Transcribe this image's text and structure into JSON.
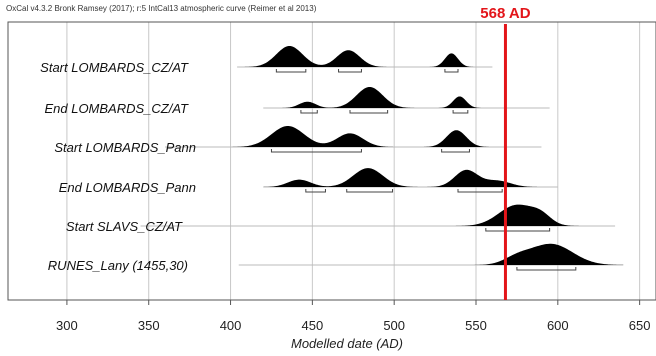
{
  "header_text": "OxCal v4.3.2 Bronk Ramsey (2017); r:5 IntCal13 atmospheric curve (Reimer et al 2013)",
  "colors": {
    "marker": "#e3151a",
    "distribution": "#000000",
    "grid": "#c8c8c8"
  },
  "chart_data": {
    "type": "area",
    "xlabel": "Modelled date (AD)",
    "xlim": [
      264,
      660
    ],
    "xticks": [
      300,
      350,
      400,
      450,
      500,
      550,
      600,
      650
    ],
    "grid": true,
    "marker": {
      "x": 568,
      "label": "568 AD"
    },
    "series": [
      {
        "name": "Start LOMBARDS_CZ/AT",
        "tail": [
          404,
          560
        ],
        "peaks": [
          {
            "x": 436,
            "h": 1.0,
            "w": 8
          },
          {
            "x": 472,
            "h": 0.8,
            "w": 7
          },
          {
            "x": 535,
            "h": 0.65,
            "w": 4
          }
        ],
        "range_95": [
          [
            428,
            446
          ],
          [
            466,
            480
          ],
          [
            531,
            539
          ]
        ]
      },
      {
        "name": "End LOMBARDS_CZ/AT",
        "tail": [
          420,
          595
        ],
        "peaks": [
          {
            "x": 447,
            "h": 0.3,
            "w": 5
          },
          {
            "x": 485,
            "h": 1.0,
            "w": 8
          },
          {
            "x": 540,
            "h": 0.55,
            "w": 4
          }
        ],
        "range_95": [
          [
            443,
            453
          ],
          [
            473,
            496
          ],
          [
            536,
            545
          ]
        ]
      },
      {
        "name": "Start LOMBARDS_Pann",
        "tail": [
          360,
          590
        ],
        "peaks": [
          {
            "x": 435,
            "h": 1.0,
            "w": 10
          },
          {
            "x": 473,
            "h": 0.65,
            "w": 8
          },
          {
            "x": 538,
            "h": 0.8,
            "w": 6
          }
        ],
        "range_95": [
          [
            425,
            480
          ],
          [
            529,
            546
          ]
        ]
      },
      {
        "name": "End LOMBARDS_Pann",
        "tail": [
          420,
          600
        ],
        "peaks": [
          {
            "x": 442,
            "h": 0.35,
            "w": 7
          },
          {
            "x": 484,
            "h": 0.9,
            "w": 9
          },
          {
            "x": 544,
            "h": 0.8,
            "w": 7
          },
          {
            "x": 563,
            "h": 0.3,
            "w": 8
          }
        ],
        "range_95": [
          [
            446,
            458
          ],
          [
            471,
            499
          ],
          [
            539,
            566
          ]
        ]
      },
      {
        "name": "Start SLAVS_CZ/AT",
        "tail": [
          345,
          635
        ],
        "peaks": [
          {
            "x": 575,
            "h": 1.0,
            "w": 11
          },
          {
            "x": 590,
            "h": 0.35,
            "w": 6
          }
        ],
        "range_95": [
          [
            556,
            595
          ]
        ]
      },
      {
        "name": "RUNES_Lany (1455,30)",
        "tail": [
          405,
          640
        ],
        "peaks": [
          {
            "x": 596,
            "h": 1.0,
            "w": 13
          },
          {
            "x": 575,
            "h": 0.3,
            "w": 8
          }
        ],
        "range_95": [
          [
            575,
            611
          ]
        ]
      }
    ]
  }
}
